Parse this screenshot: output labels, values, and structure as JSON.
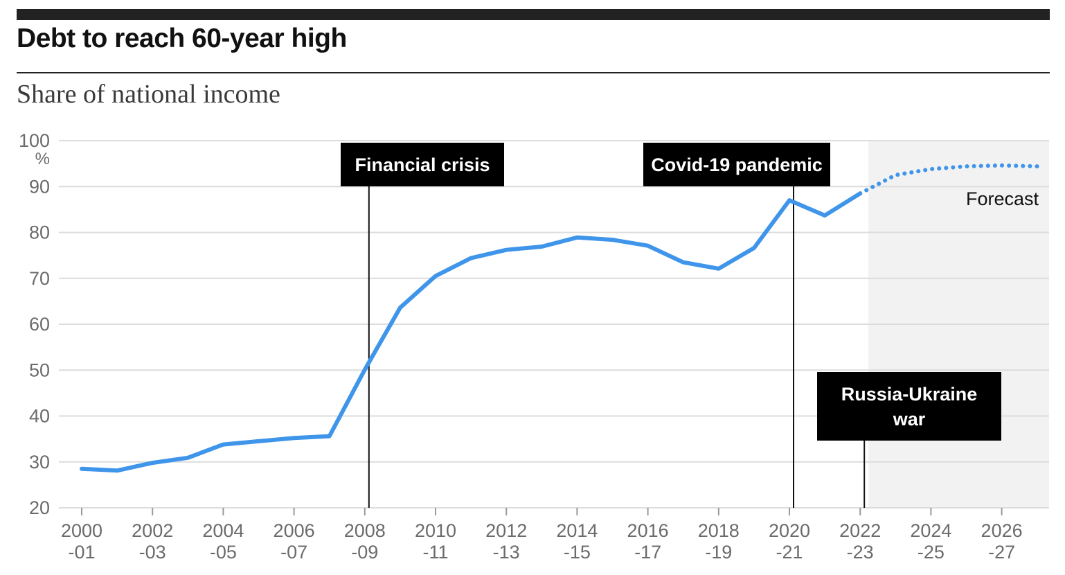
{
  "header": {
    "title": "Debt to reach 60-year high",
    "subtitle": "Share of national income"
  },
  "colors": {
    "line": "#3f95ea",
    "annotation_bg": "#000000",
    "annotation_text": "#ffffff",
    "forecast_shade": "#f2f2f2",
    "grid": "#dcdcdc",
    "top_bar": "#222222"
  },
  "chart_data": {
    "type": "line",
    "title": "Debt to reach 60-year high",
    "subtitle": "Share of national income",
    "xlabel": "",
    "ylabel": "",
    "y_unit": "%",
    "ylim": [
      20,
      100
    ],
    "yticks": [
      20,
      30,
      40,
      50,
      60,
      70,
      80,
      90,
      100
    ],
    "x_tick_labels": [
      {
        "line1": "2000",
        "line2": "-01"
      },
      {
        "line1": "2002",
        "line2": "-03"
      },
      {
        "line1": "2004",
        "line2": "-05"
      },
      {
        "line1": "2006",
        "line2": "-07"
      },
      {
        "line1": "2008",
        "line2": "-09"
      },
      {
        "line1": "2010",
        "line2": "-11"
      },
      {
        "line1": "2012",
        "line2": "-13"
      },
      {
        "line1": "2014",
        "line2": "-15"
      },
      {
        "line1": "2016",
        "line2": "-17"
      },
      {
        "line1": "2018",
        "line2": "-19"
      },
      {
        "line1": "2020",
        "line2": "-21"
      },
      {
        "line1": "2022",
        "line2": "-23"
      },
      {
        "line1": "2024",
        "line2": "-25"
      },
      {
        "line1": "2026",
        "line2": "-27"
      }
    ],
    "grid": true,
    "legend": "none",
    "series": [
      {
        "style": "solid",
        "points": [
          {
            "x": "2000-01",
            "y": 28.5
          },
          {
            "x": "2001-02",
            "y": 28.1
          },
          {
            "x": "2002-03",
            "y": 29.8
          },
          {
            "x": "2003-04",
            "y": 30.9
          },
          {
            "x": "2004-05",
            "y": 33.8
          },
          {
            "x": "2005-06",
            "y": 34.5
          },
          {
            "x": "2006-07",
            "y": 35.2
          },
          {
            "x": "2007-08",
            "y": 35.6
          },
          {
            "x": "2008-09",
            "y": 50.1
          },
          {
            "x": "2009-10",
            "y": 63.6
          },
          {
            "x": "2010-11",
            "y": 70.5
          },
          {
            "x": "2011-12",
            "y": 74.4
          },
          {
            "x": "2012-13",
            "y": 76.2
          },
          {
            "x": "2013-14",
            "y": 76.9
          },
          {
            "x": "2014-15",
            "y": 78.9
          },
          {
            "x": "2015-16",
            "y": 78.4
          },
          {
            "x": "2016-17",
            "y": 77.1
          },
          {
            "x": "2017-18",
            "y": 73.5
          },
          {
            "x": "2018-19",
            "y": 72.1
          },
          {
            "x": "2019-20",
            "y": 76.6
          },
          {
            "x": "2020-21",
            "y": 87.0
          },
          {
            "x": "2021-22",
            "y": 83.7
          },
          {
            "x": "2022-23",
            "y": 88.5
          }
        ]
      },
      {
        "style": "dotted",
        "points": [
          {
            "x": "2022-23",
            "y": 88.5
          },
          {
            "x": "2023-24",
            "y": 92.5
          },
          {
            "x": "2024-25",
            "y": 93.8
          },
          {
            "x": "2025-26",
            "y": 94.4
          },
          {
            "x": "2026-27",
            "y": 94.6
          },
          {
            "x": "2027-28",
            "y": 94.4
          }
        ]
      }
    ],
    "forecast_region": {
      "from": "2022-23",
      "label": "Forecast"
    },
    "annotations": [
      {
        "label": "Financial crisis",
        "x": "2008-09"
      },
      {
        "label": "Covid-19 pandemic",
        "x": "2020-21"
      },
      {
        "label": "Russia-Ukraine war",
        "x": "2022-23"
      }
    ]
  }
}
